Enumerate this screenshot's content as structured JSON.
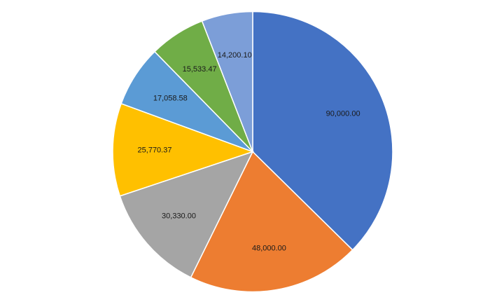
{
  "chart_data": {
    "type": "pie",
    "start_angle_deg": 0,
    "direction": "clockwise",
    "slices": [
      {
        "label": "90,000.00",
        "value": 90000.0,
        "color": "#4472C4"
      },
      {
        "label": "48,000.00",
        "value": 48000.0,
        "color": "#ED7D31"
      },
      {
        "label": "30,330.00",
        "value": 30330.0,
        "color": "#A5A5A5"
      },
      {
        "label": "25,770.37",
        "value": 25770.37,
        "color": "#FFC000"
      },
      {
        "label": "17,058.58",
        "value": 17058.58,
        "color": "#5B9BD5"
      },
      {
        "label": "15,533.47",
        "value": 15533.47,
        "color": "#70AD47"
      },
      {
        "label": "14,200.10",
        "value": 14200.1,
        "color": "#7C9ED8"
      }
    ],
    "legend": "none"
  }
}
